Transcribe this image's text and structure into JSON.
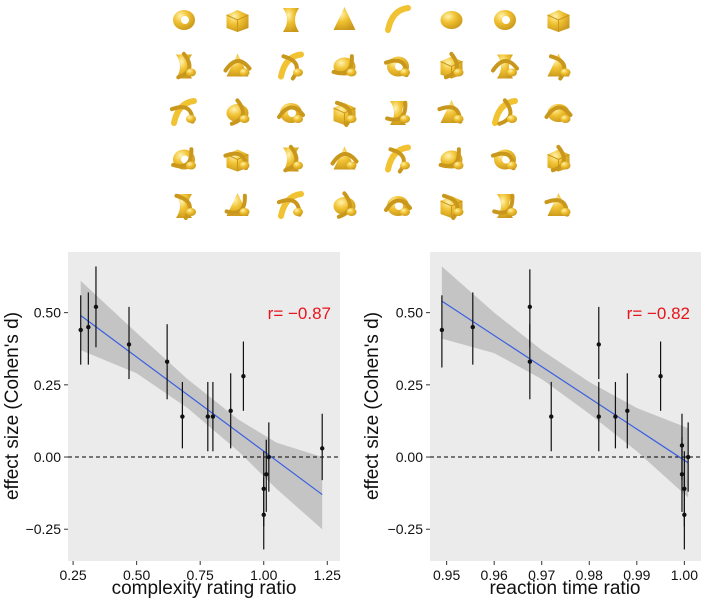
{
  "stimuli": {
    "rows": 5,
    "cols": 8,
    "color": "#f1c232",
    "shade_color": "#c9971b",
    "highlight_color": "#fff3b0",
    "icon": "yellow-3d-shape-icon"
  },
  "chart_data": [
    {
      "type": "scatter",
      "title": "",
      "xlabel": "complexity rating ratio",
      "ylabel": "effect size (Cohen's d)",
      "xlim": [
        0.23,
        1.3
      ],
      "ylim": [
        -0.36,
        0.71
      ],
      "xticks": [
        0.25,
        0.5,
        0.75,
        1.0,
        1.25
      ],
      "xtick_labels": [
        "0.25",
        "0.50",
        "0.75",
        "1.00",
        "1.25"
      ],
      "yticks": [
        -0.25,
        0.0,
        0.25,
        0.5
      ],
      "ytick_labels": [
        "−0.25",
        "0.00",
        "0.25",
        "0.50"
      ],
      "annotation": "r= −0.87",
      "annotation_color": "#e8141c",
      "grid": false,
      "background": "#ebebeb",
      "point_color": "#111111",
      "fit_color": "#3a5fe0",
      "band_color": "#bdbdbd",
      "reference_line": {
        "y": 0.0,
        "style": "dashed"
      },
      "points": [
        {
          "x": 0.28,
          "y": 0.44,
          "lo": 0.32,
          "hi": 0.56
        },
        {
          "x": 0.31,
          "y": 0.45,
          "lo": 0.32,
          "hi": 0.57
        },
        {
          "x": 0.34,
          "y": 0.52,
          "lo": 0.38,
          "hi": 0.66
        },
        {
          "x": 0.47,
          "y": 0.39,
          "lo": 0.27,
          "hi": 0.52
        },
        {
          "x": 0.62,
          "y": 0.33,
          "lo": 0.2,
          "hi": 0.46
        },
        {
          "x": 0.68,
          "y": 0.14,
          "lo": 0.03,
          "hi": 0.26
        },
        {
          "x": 0.78,
          "y": 0.14,
          "lo": 0.02,
          "hi": 0.26
        },
        {
          "x": 0.8,
          "y": 0.14,
          "lo": 0.02,
          "hi": 0.26
        },
        {
          "x": 0.87,
          "y": 0.16,
          "lo": 0.03,
          "hi": 0.29
        },
        {
          "x": 0.92,
          "y": 0.28,
          "lo": 0.16,
          "hi": 0.4
        },
        {
          "x": 1.0,
          "y": -0.2,
          "lo": -0.32,
          "hi": -0.07
        },
        {
          "x": 1.0,
          "y": -0.11,
          "lo": -0.24,
          "hi": 0.02
        },
        {
          "x": 1.01,
          "y": -0.06,
          "lo": -0.19,
          "hi": 0.06
        },
        {
          "x": 1.02,
          "y": 0.0,
          "lo": -0.12,
          "hi": 0.12
        },
        {
          "x": 1.23,
          "y": 0.03,
          "lo": -0.08,
          "hi": 0.15
        }
      ],
      "fit": {
        "x0": 0.28,
        "y0": 0.49,
        "x1": 1.23,
        "y1": -0.13
      },
      "band": [
        {
          "x": 0.28,
          "lo": 0.37,
          "hi": 0.61
        },
        {
          "x": 0.5,
          "lo": 0.29,
          "hi": 0.43
        },
        {
          "x": 0.7,
          "lo": 0.17,
          "hi": 0.27
        },
        {
          "x": 0.9,
          "lo": 0.02,
          "hi": 0.13
        },
        {
          "x": 1.05,
          "lo": -0.11,
          "hi": 0.05
        },
        {
          "x": 1.23,
          "lo": -0.25,
          "hi": 0.0
        }
      ]
    },
    {
      "type": "scatter",
      "title": "",
      "xlabel": "reaction time ratio",
      "ylabel": "effect size (Cohen's d)",
      "xlim": [
        0.9465,
        1.0035
      ],
      "ylim": [
        -0.36,
        0.71
      ],
      "xticks": [
        0.95,
        0.96,
        0.97,
        0.98,
        0.99,
        1.0
      ],
      "xtick_labels": [
        "0.95",
        "0.96",
        "0.97",
        "0.98",
        "0.99",
        "1.00"
      ],
      "yticks": [
        -0.25,
        0.0,
        0.25,
        0.5
      ],
      "ytick_labels": [
        "−0.25",
        "0.00",
        "0.25",
        "0.50"
      ],
      "annotation": "r= −0.82",
      "annotation_color": "#e8141c",
      "grid": false,
      "background": "#ebebeb",
      "point_color": "#111111",
      "fit_color": "#3a5fe0",
      "band_color": "#bdbdbd",
      "reference_line": {
        "y": 0.0,
        "style": "dashed"
      },
      "points": [
        {
          "x": 0.949,
          "y": 0.44,
          "lo": 0.31,
          "hi": 0.56
        },
        {
          "x": 0.9555,
          "y": 0.45,
          "lo": 0.32,
          "hi": 0.57
        },
        {
          "x": 0.9675,
          "y": 0.52,
          "lo": 0.38,
          "hi": 0.65
        },
        {
          "x": 0.9675,
          "y": 0.33,
          "lo": 0.2,
          "hi": 0.46
        },
        {
          "x": 0.972,
          "y": 0.14,
          "lo": 0.02,
          "hi": 0.26
        },
        {
          "x": 0.982,
          "y": 0.39,
          "lo": 0.27,
          "hi": 0.52
        },
        {
          "x": 0.982,
          "y": 0.14,
          "lo": 0.02,
          "hi": 0.26
        },
        {
          "x": 0.9855,
          "y": 0.14,
          "lo": 0.03,
          "hi": 0.26
        },
        {
          "x": 0.988,
          "y": 0.16,
          "lo": 0.03,
          "hi": 0.29
        },
        {
          "x": 0.995,
          "y": 0.28,
          "lo": 0.16,
          "hi": 0.4
        },
        {
          "x": 0.9995,
          "y": 0.04,
          "lo": -0.08,
          "hi": 0.15
        },
        {
          "x": 0.9995,
          "y": -0.06,
          "lo": -0.19,
          "hi": 0.07
        },
        {
          "x": 1.0,
          "y": -0.11,
          "lo": -0.24,
          "hi": 0.02
        },
        {
          "x": 1.0,
          "y": -0.2,
          "lo": -0.32,
          "hi": -0.07
        },
        {
          "x": 1.0008,
          "y": 0.0,
          "lo": -0.12,
          "hi": 0.12
        }
      ],
      "fit": {
        "x0": 0.949,
        "y0": 0.54,
        "x1": 1.0008,
        "y1": -0.02
      },
      "band": [
        {
          "x": 0.949,
          "lo": 0.41,
          "hi": 0.66
        },
        {
          "x": 0.96,
          "lo": 0.36,
          "hi": 0.5
        },
        {
          "x": 0.97,
          "lo": 0.27,
          "hi": 0.37
        },
        {
          "x": 0.98,
          "lo": 0.15,
          "hi": 0.26
        },
        {
          "x": 0.99,
          "lo": 0.02,
          "hi": 0.17
        },
        {
          "x": 1.0008,
          "lo": -0.14,
          "hi": 0.1
        }
      ]
    }
  ]
}
